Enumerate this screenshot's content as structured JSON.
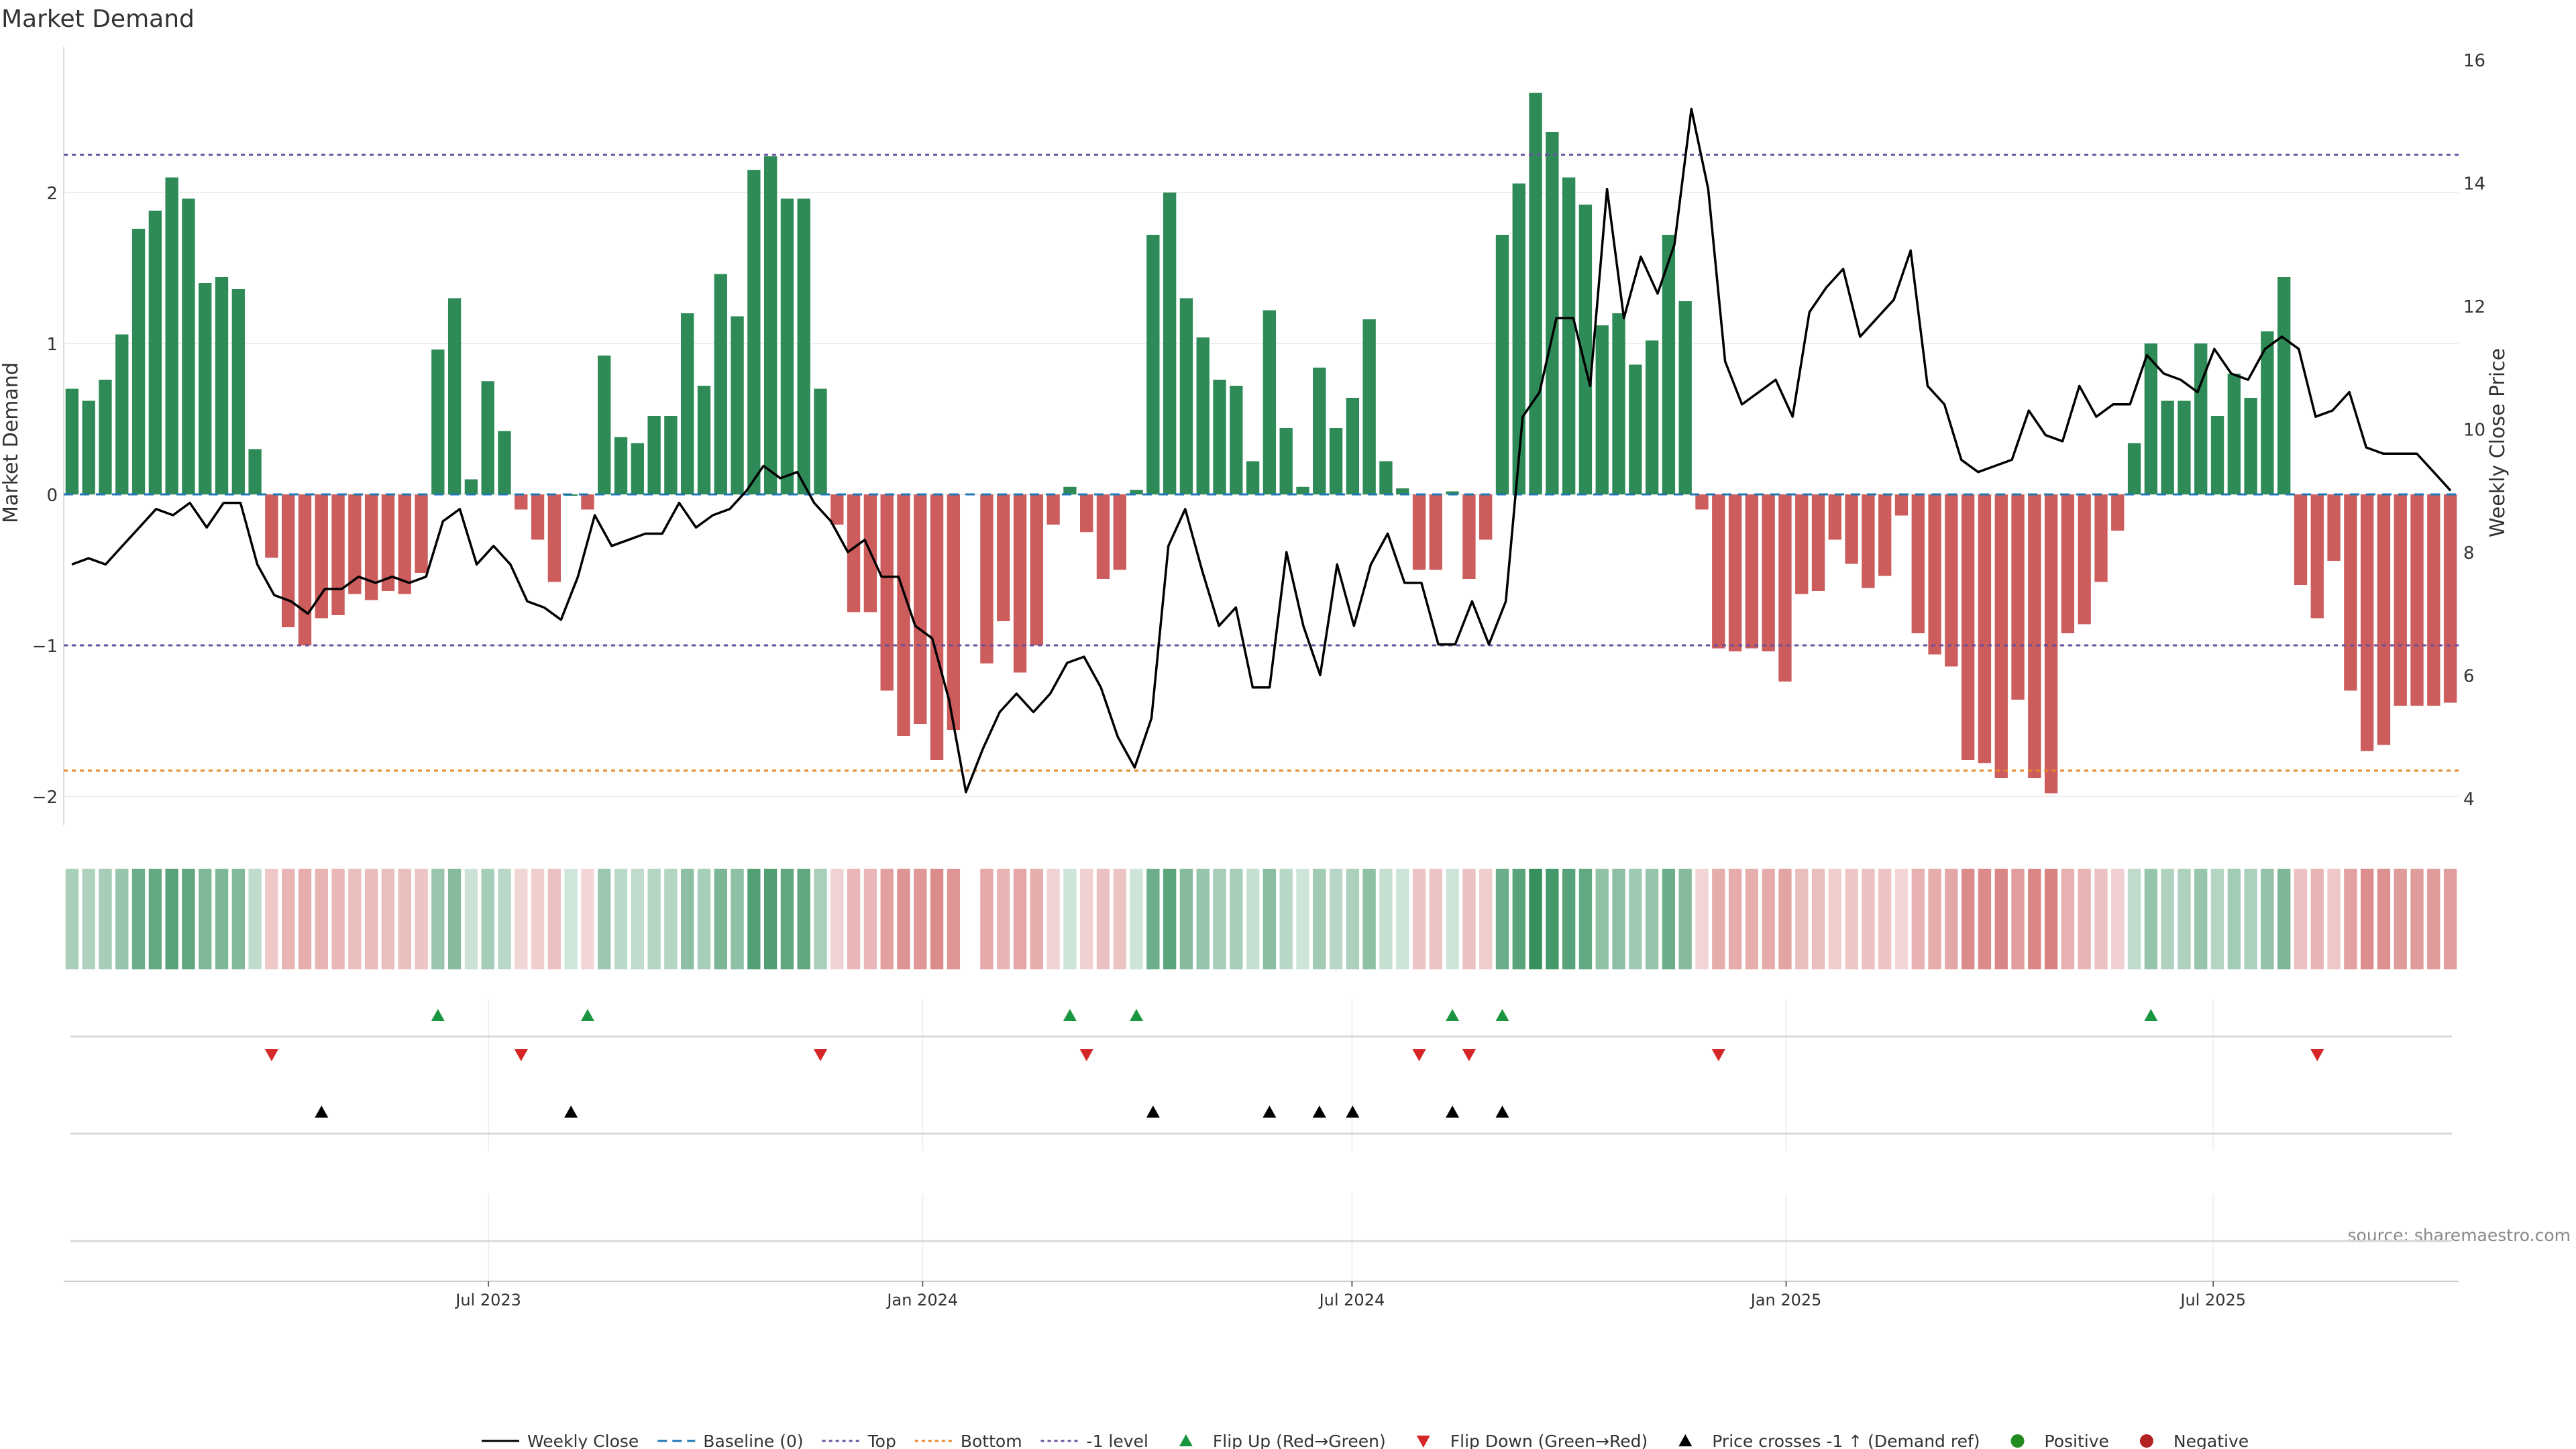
{
  "colors": {
    "positive": "#2e8b57",
    "negative": "#cd5c5c",
    "price": "#000000",
    "top_line": "#6a4fa0",
    "bottom_line": "#e8862a",
    "minus_one_line": "#6a4fa0",
    "baseline": "#1f77b4",
    "flip_up": "#1a9641",
    "flip_down": "#d62728",
    "cross": "#000000",
    "pos_dot": "#228b22",
    "neg_dot": "#b22222"
  },
  "chart_data": {
    "type": "bar+line",
    "title": "Market Demand",
    "ylabel_left": "Market Demand",
    "ylabel_right": "Weekly Close Price",
    "source_text": "source: sharemaestro.com",
    "ylim_left": [
      -2.25,
      2.9
    ],
    "ylim_right": [
      4,
      16
    ],
    "yticks_left": [
      -2,
      -1,
      0,
      1,
      2
    ],
    "yticks_left_labels": [
      "−2",
      "−1",
      "0",
      "1",
      "2"
    ],
    "yticks_right": [
      4,
      6,
      8,
      10,
      12,
      14,
      16
    ],
    "yticks_right_labels": [
      "4",
      "6",
      "8",
      "10",
      "12",
      "14",
      "16"
    ],
    "x_start": "2023-01-02",
    "x_end": "2025-10-13",
    "xticks": [
      {
        "date": "2023-07-01",
        "label": "Jul 2023"
      },
      {
        "date": "2024-01-01",
        "label": "Jan 2024"
      },
      {
        "date": "2024-07-01",
        "label": "Jul 2024"
      },
      {
        "date": "2025-01-01",
        "label": "Jan 2025"
      },
      {
        "date": "2025-07-01",
        "label": "Jul 2025"
      }
    ],
    "reference_lines": {
      "top": 2.25,
      "bottom": -1.83,
      "minus_one": -1,
      "baseline": 0
    },
    "demand": [
      0.7,
      0.62,
      0.76,
      1.06,
      1.76,
      1.88,
      2.1,
      1.96,
      1.4,
      1.44,
      1.36,
      0.3,
      -0.42,
      -0.88,
      -1.0,
      -0.82,
      -0.8,
      -0.66,
      -0.7,
      -0.64,
      -0.66,
      -0.52,
      0.96,
      1.3,
      0.1,
      0.75,
      0.42,
      -0.1,
      -0.3,
      -0.58,
      0,
      -0.1,
      0.92,
      0.38,
      0.34,
      0.52,
      0.52,
      1.2,
      0.72,
      1.46,
      1.18,
      2.15,
      2.24,
      1.96,
      1.96,
      0.7,
      -0.2,
      -0.78,
      -0.78,
      -1.3,
      -1.6,
      -1.52,
      -1.76,
      -1.56,
      null,
      -1.12,
      -0.84,
      -1.18,
      -1.0,
      -0.2,
      0.05,
      -0.25,
      -0.56,
      -0.5,
      0.03,
      1.72,
      2.0,
      1.3,
      1.04,
      0.76,
      0.72,
      0.22,
      1.22,
      0.44,
      0.05,
      0.84,
      0.44,
      0.64,
      1.16,
      0.22,
      0.04,
      -0.5,
      -0.5,
      0.02,
      -0.56,
      -0.3,
      1.72,
      2.06,
      2.66,
      2.4,
      2.1,
      1.92,
      1.12,
      1.2,
      0.86,
      1.02,
      1.72,
      1.28,
      -0.1,
      -1.02,
      -1.04,
      -1.02,
      -1.04,
      -1.24,
      -0.66,
      -0.64,
      -0.3,
      -0.46,
      -0.62,
      -0.54,
      -0.14,
      -0.92,
      -1.06,
      -1.14,
      -1.76,
      -1.78,
      -1.88,
      -1.36,
      -1.88,
      -1.98,
      -0.92,
      -0.86,
      -0.58,
      -0.24,
      0.34,
      1.0,
      0.62,
      0.62,
      1.0,
      0.52,
      0.8,
      0.64,
      1.08,
      1.44,
      -0.6,
      -0.82,
      -0.44,
      -1.3,
      -1.7,
      -1.66,
      -1.4,
      -1.4,
      -1.4,
      -1.38
    ],
    "price": [
      7.8,
      7.9,
      7.8,
      8.1,
      8.4,
      8.7,
      8.6,
      8.8,
      8.4,
      8.8,
      8.8,
      7.8,
      7.3,
      7.2,
      7.0,
      7.4,
      7.4,
      7.6,
      7.5,
      7.6,
      7.5,
      7.6,
      8.5,
      8.7,
      7.8,
      8.1,
      7.8,
      7.2,
      7.1,
      6.9,
      7.6,
      8.6,
      8.1,
      8.2,
      8.3,
      8.3,
      8.8,
      8.4,
      8.6,
      8.7,
      9.0,
      9.4,
      9.2,
      9.3,
      8.8,
      8.5,
      8.0,
      8.2,
      7.6,
      7.6,
      6.8,
      6.6,
      5.6,
      4.1,
      4.8,
      5.4,
      5.7,
      5.4,
      5.7,
      6.2,
      6.3,
      5.8,
      5.0,
      4.5,
      5.3,
      8.1,
      8.7,
      7.7,
      6.8,
      7.1,
      5.8,
      5.8,
      8.0,
      6.8,
      6.0,
      7.8,
      6.8,
      7.8,
      8.3,
      7.5,
      7.5,
      6.5,
      6.5,
      7.2,
      6.5,
      7.2,
      10.2,
      10.6,
      11.8,
      11.8,
      10.7,
      13.9,
      11.8,
      12.8,
      12.2,
      13.0,
      15.2,
      13.9,
      11.1,
      10.4,
      10.6,
      10.8,
      10.2,
      11.9,
      12.3,
      12.6,
      11.5,
      11.8,
      12.1,
      12.9,
      10.7,
      10.4,
      9.5,
      9.3,
      9.4,
      9.5,
      10.3,
      9.9,
      9.8,
      10.7,
      10.2,
      10.4,
      10.4,
      11.2,
      10.9,
      10.8,
      10.6,
      11.3,
      10.9,
      10.8,
      11.3,
      11.5,
      11.3,
      10.2,
      10.3,
      10.6,
      9.7,
      9.6,
      9.6,
      9.6,
      9.3,
      9.0
    ],
    "heatstrip_gap_index": 54,
    "flip_up_idx": [
      22,
      31,
      60,
      64,
      83,
      86,
      125
    ],
    "flip_down_idx": [
      12,
      27,
      45,
      61,
      81,
      84,
      99,
      135
    ],
    "cross_up_idx": [
      15,
      30,
      65,
      72,
      75,
      77,
      83,
      86
    ],
    "legend": [
      {
        "key": "price",
        "label": "Weekly Close"
      },
      {
        "key": "baseline",
        "label": "Baseline (0)"
      },
      {
        "key": "top",
        "label": "Top"
      },
      {
        "key": "bottom",
        "label": "Bottom"
      },
      {
        "key": "minus_one",
        "label": "-1 level"
      },
      {
        "key": "flip_up",
        "label": "Flip Up (Red→Green)"
      },
      {
        "key": "flip_down",
        "label": "Flip Down (Green→Red)"
      },
      {
        "key": "cross",
        "label": "Price crosses -1 ↑ (Demand ref)"
      },
      {
        "key": "pos_dot",
        "label": "Positive"
      },
      {
        "key": "neg_dot",
        "label": "Negative"
      }
    ]
  }
}
